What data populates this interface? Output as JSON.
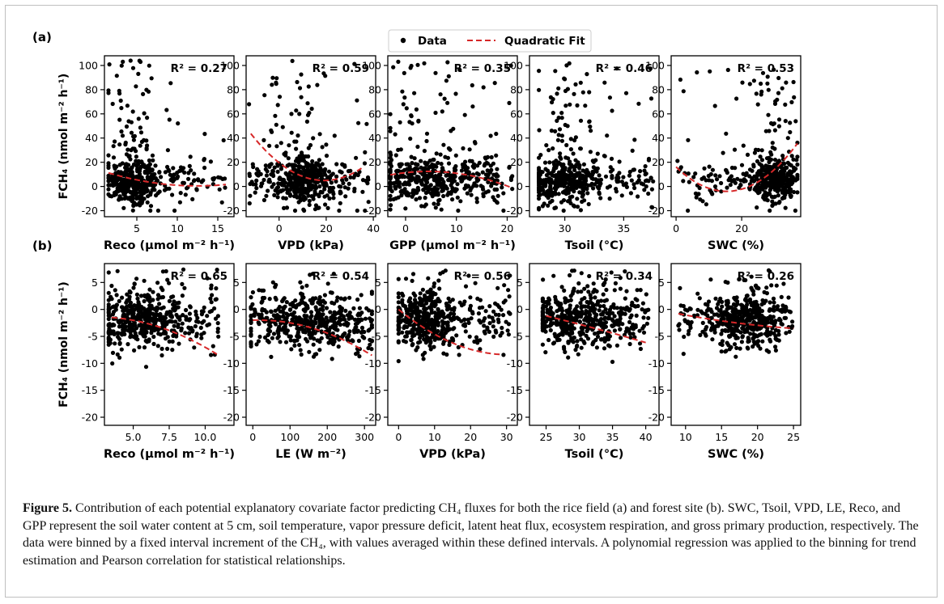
{
  "figure": {
    "row_labels": [
      "(a)",
      "(b)"
    ],
    "legend": {
      "data_label": "Data",
      "fit_label": "Quadratic Fit"
    },
    "fit_color": "#d62728",
    "point_color": "#000000"
  },
  "caption": {
    "lead": "Figure 5.",
    "text": "Contribution of each potential explanatory covariate factor predicting CH₄ fluxes for both the rice field (a) and forest site (b). SWC, Tsoil, VPD, LE, Reco, and GPP represent the soil water content at 5 cm, soil temperature, vapor pressure deficit, latent heat flux, ecosystem respiration, and gross primary production, respectively. The data were binned by a fixed interval increment of the CH₄, with values averaged within these defined intervals. A polynomial regression was applied to the binning for trend estimation and Pearson correlation for statistical relationships."
  },
  "chart_data": [
    {
      "type": "scatter",
      "row": "a",
      "col": 0,
      "xlabel": "Reco (µmol m⁻² h⁻¹)",
      "ylabel": "FCH₄ (nmol m⁻² h⁻¹)",
      "r2": "R² = 0.27",
      "xlim": [
        1,
        17
      ],
      "ylim": [
        -25,
        108
      ],
      "xticks": [
        5,
        10,
        15
      ],
      "yticks": [
        -20,
        0,
        20,
        40,
        60,
        80,
        100
      ],
      "fit": [
        14.4,
        -2.24,
        0.09
      ],
      "fit_range": [
        1.5,
        16
      ],
      "cloud": {
        "xmin": 1.5,
        "xmax": 16,
        "xpeak": 4.5,
        "xspread": 1.6,
        "ymin": -20,
        "ymax": 104,
        "ycenter": 5,
        "yspread": 9,
        "tail": 0.25,
        "n": 480,
        "seed": 11
      }
    },
    {
      "type": "scatter",
      "row": "a",
      "col": 1,
      "xlabel": "VPD (kPa)",
      "ylabel": "",
      "r2": "R² = 0.59",
      "xlim": [
        -14,
        41
      ],
      "ylim": [
        -25,
        108
      ],
      "xticks": [
        0,
        20,
        40
      ],
      "yticks": [
        -20,
        0,
        20,
        40,
        60,
        80,
        100
      ],
      "fit": [
        19.6,
        -1.53,
        0.04
      ],
      "fit_range": [
        -12,
        35
      ],
      "cloud": {
        "xmin": -13,
        "xmax": 38,
        "xpeak": 10,
        "xspread": 7,
        "ymin": -20,
        "ymax": 104,
        "ycenter": 5,
        "yspread": 9,
        "tail": 0.22,
        "n": 480,
        "seed": 23
      }
    },
    {
      "type": "scatter",
      "row": "a",
      "col": 2,
      "xlabel": "GPP (µmol m⁻² h⁻¹)",
      "ylabel": "",
      "r2": "R² = 0.35",
      "xlim": [
        -3.5,
        22
      ],
      "ylim": [
        -25,
        108
      ],
      "xticks": [
        0,
        10,
        20
      ],
      "yticks": [
        -20,
        0,
        20,
        40,
        60,
        80,
        100
      ],
      "fit": [
        11.4,
        0.45,
        -0.05
      ],
      "fit_range": [
        -3,
        21
      ],
      "cloud": {
        "xmin": -3,
        "xmax": 21,
        "xpeak": 5,
        "xspread": 6,
        "ymin": -20,
        "ymax": 104,
        "ycenter": 5,
        "yspread": 9,
        "tail": 0.22,
        "n": 480,
        "seed": 37
      }
    },
    {
      "type": "scatter",
      "row": "a",
      "col": 3,
      "xlabel": "Tsoil (°C)",
      "ylabel": "",
      "r2": "R² = 0.46",
      "xlim": [
        27,
        38
      ],
      "ylim": [
        -25,
        108
      ],
      "xticks": [
        30,
        35
      ],
      "yticks": [
        -20,
        0,
        20,
        40,
        60,
        80,
        100
      ],
      "fit": [
        1.5,
        -4.0,
        0.63
      ],
      "fit_range": [
        28,
        37.5
      ],
      "cloud": {
        "xmin": 27.8,
        "xmax": 37.5,
        "xpeak": 30,
        "xspread": 1.8,
        "ymin": -20,
        "ymax": 104,
        "ycenter": 5,
        "yspread": 9,
        "tail": 0.22,
        "n": 480,
        "seed": 53
      }
    },
    {
      "type": "scatter",
      "row": "a",
      "col": 4,
      "xlabel": "SWC (%)",
      "ylabel": "",
      "r2": "R² = 0.53",
      "xlim": [
        -1.5,
        38
      ],
      "ylim": [
        -25,
        108
      ],
      "xticks": [
        0,
        20
      ],
      "yticks": [
        -20,
        0,
        20,
        40,
        60,
        80,
        100
      ],
      "fit": [
        -4.0,
        0.1,
        0.085
      ],
      "fit_range": [
        0,
        37
      ],
      "fit_center": 16,
      "cloud": {
        "xmin": 0,
        "xmax": 37,
        "xpeak": 30,
        "xspread": 3.5,
        "ymin": -20,
        "ymax": 104,
        "ycenter": 5,
        "yspread": 9,
        "tail": 0.22,
        "n": 480,
        "seed": 71
      }
    },
    {
      "type": "scatter",
      "row": "b",
      "col": 0,
      "xlabel": "Reco (µmol m⁻² h⁻¹)",
      "ylabel": "FCH₄ (nmol m⁻² h⁻¹)",
      "r2": "R² = 0.65",
      "xlim": [
        3,
        12
      ],
      "ylim": [
        -21.5,
        8.5
      ],
      "xticks": [
        5.0,
        7.5,
        10.0
      ],
      "yticks": [
        -20,
        -15,
        -10,
        -5,
        0,
        5
      ],
      "fit": [
        -1.5,
        -0.2,
        -0.1
      ],
      "fit_range": [
        3.5,
        11
      ],
      "fit_center": 3.5,
      "cloud": {
        "xmin": 3.3,
        "xmax": 11,
        "xpeak": 5.5,
        "xspread": 1.6,
        "ymin": -20.5,
        "ymax": 7.5,
        "ycenter": -2,
        "yspread": 2.6,
        "tail": 0.12,
        "n": 480,
        "seed": 89
      }
    },
    {
      "type": "scatter",
      "row": "b",
      "col": 1,
      "xlabel": "LE (W m⁻²)",
      "ylabel": "",
      "r2": "R² = 0.54",
      "xlim": [
        -18,
        330
      ],
      "ylim": [
        -21.5,
        8.5
      ],
      "xticks": [
        0,
        100,
        200,
        300
      ],
      "yticks": [
        -20,
        -15,
        -10,
        -5,
        0,
        5
      ],
      "fit": [
        -2.0,
        0.002,
        -7e-05
      ],
      "fit_range": [
        0,
        320
      ],
      "cloud": {
        "xmin": -5,
        "xmax": 320,
        "xpeak": 150,
        "xspread": 90,
        "ymin": -20.5,
        "ymax": 7.5,
        "ycenter": -2.5,
        "yspread": 2.6,
        "tail": 0.12,
        "n": 480,
        "seed": 97
      }
    },
    {
      "type": "scatter",
      "row": "b",
      "col": 2,
      "xlabel": "VPD (kPa)",
      "ylabel": "",
      "r2": "R² = 0.56",
      "xlim": [
        -3,
        33
      ],
      "ylim": [
        -21.5,
        8.5
      ],
      "xticks": [
        0,
        10,
        20,
        30
      ],
      "yticks": [
        -20,
        -15,
        -10,
        -5,
        0,
        5
      ],
      "fit": [
        0,
        -0.55,
        0.009
      ],
      "fit_range": [
        0,
        29
      ],
      "cloud": {
        "xmin": 0,
        "xmax": 31,
        "xpeak": 7,
        "xspread": 5,
        "ymin": -20.5,
        "ymax": 7.5,
        "ycenter": -2,
        "yspread": 2.6,
        "tail": 0.12,
        "n": 480,
        "seed": 113
      }
    },
    {
      "type": "scatter",
      "row": "b",
      "col": 3,
      "xlabel": "Tsoil (°C)",
      "ylabel": "",
      "r2": "R² = 0.34",
      "xlim": [
        22.5,
        42
      ],
      "ylim": [
        -21.5,
        8.5
      ],
      "xticks": [
        25,
        30,
        35,
        40
      ],
      "yticks": [
        -20,
        -15,
        -10,
        -5,
        0,
        5
      ],
      "fit": [
        -1.2,
        -0.3,
        -0.002
      ],
      "fit_range": [
        25,
        40
      ],
      "fit_center": 25,
      "cloud": {
        "xmin": 24.5,
        "xmax": 40.5,
        "xpeak": 30,
        "xspread": 4,
        "ymin": -20.5,
        "ymax": 7.5,
        "ycenter": -2,
        "yspread": 2.6,
        "tail": 0.12,
        "n": 480,
        "seed": 131
      }
    },
    {
      "type": "scatter",
      "row": "b",
      "col": 4,
      "xlabel": "SWC (%)",
      "ylabel": "",
      "r2": "R² = 0.26",
      "xlim": [
        8,
        26
      ],
      "ylim": [
        -21.5,
        8.5
      ],
      "xticks": [
        10,
        15,
        20,
        25
      ],
      "yticks": [
        -20,
        -15,
        -10,
        -5,
        0,
        5
      ],
      "fit": [
        -0.8,
        -0.25,
        0.005
      ],
      "fit_range": [
        9,
        25
      ],
      "fit_center": 9,
      "cloud": {
        "xmin": 9,
        "xmax": 25,
        "xpeak": 18,
        "xspread": 2.3,
        "ymin": -20.5,
        "ymax": 7.5,
        "ycenter": -2,
        "yspread": 2.6,
        "tail": 0.12,
        "n": 480,
        "seed": 149
      }
    }
  ]
}
